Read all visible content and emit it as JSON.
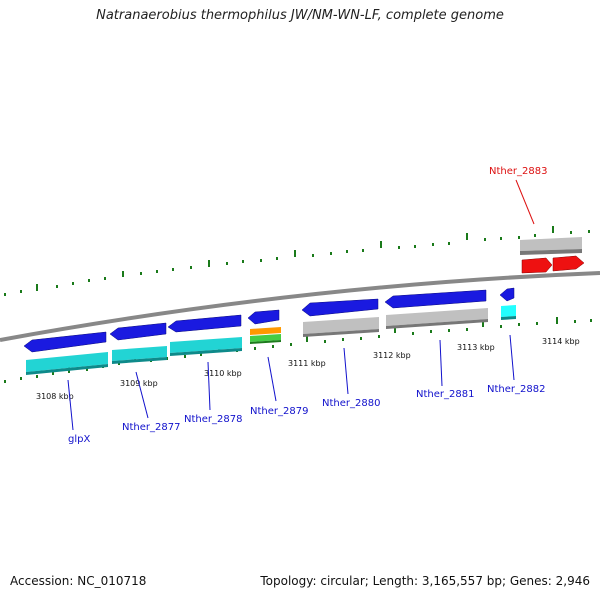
{
  "title": "Natranaerobius thermophilus JW/NM-WN-LF, complete genome",
  "footer": {
    "accession": "Accession: NC_010718",
    "topology": "Topology: circular; Length: 3,165,557 bp; Genes: 2,946"
  },
  "ticks": [
    "3108 kbp",
    "3109 kbp",
    "3110 kbp",
    "3111 kbp",
    "3112 kbp",
    "3113 kbp",
    "3114 kbp"
  ],
  "genes": [
    {
      "name": "glpX"
    },
    {
      "name": "Nther_2877"
    },
    {
      "name": "Nther_2878"
    },
    {
      "name": "Nther_2879"
    },
    {
      "name": "Nther_2880"
    },
    {
      "name": "Nther_2881"
    },
    {
      "name": "Nther_2882"
    },
    {
      "name": "Nther_2883"
    }
  ],
  "colors": {
    "cds": "#1a1ae0",
    "cyan": "#22d4d4",
    "gray": "#b8b8b8",
    "orange": "#ff9900",
    "green": "#44cc44",
    "red": "#ee1111",
    "tick_green": "#1a7a1a",
    "label_blue": "#1111cc",
    "label_red": "#dd1111",
    "backbone": "#888888"
  }
}
